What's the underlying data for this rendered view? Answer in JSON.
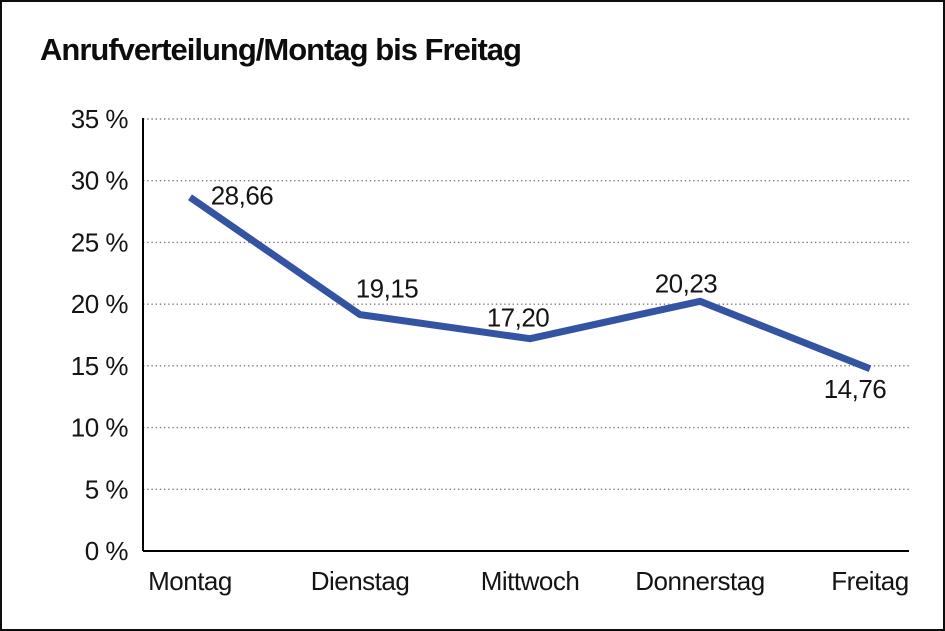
{
  "chart_data": {
    "type": "line",
    "title": "Anrufverteilung/Montag bis Freitag",
    "categories": [
      "Montag",
      "Dienstag",
      "Mittwoch",
      "Donnerstag",
      "Freitag"
    ],
    "series": [
      {
        "name": "Anrufverteilung",
        "values": [
          28.66,
          19.15,
          17.2,
          20.23,
          14.76
        ]
      }
    ],
    "value_labels": [
      "28,66",
      "19,15",
      "17,20",
      "20,23",
      "14,76"
    ],
    "y_ticks": [
      "0 %",
      "5 %",
      "10 %",
      "15 %",
      "20 %",
      "25 %",
      "30 %",
      "35 %"
    ],
    "ylim": [
      0,
      35
    ],
    "y_tick_step": 5,
    "grid": "horizontal-dotted",
    "legend": "none",
    "xlabel": "",
    "ylabel": "",
    "colors": {
      "line": "#3553A3",
      "text": "#141414",
      "grid": "#7d7d7d",
      "axis": "#000000",
      "background": "#ffffff",
      "frame_border": "#0d0d0d"
    }
  }
}
